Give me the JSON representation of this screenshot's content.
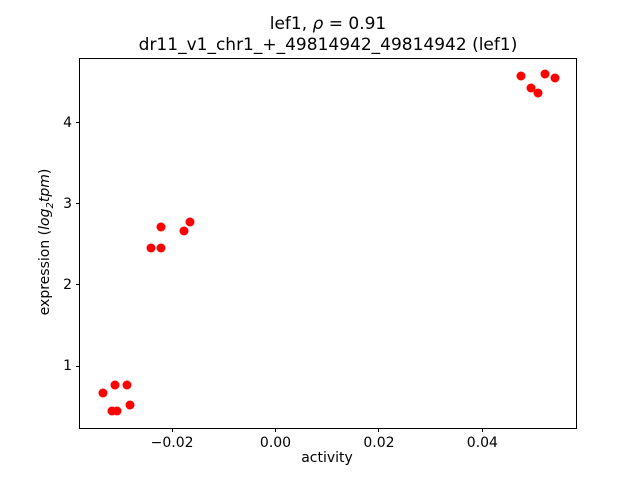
{
  "figure": {
    "title_line1": {
      "prefix": "lef1, ",
      "rho": "ρ",
      "suffix": " = 0.91"
    },
    "title_line2": "dr11_v1_chr1_+_49814942_49814942 (lef1)",
    "xlabel": "activity",
    "ylabel": {
      "prefix": "expression (",
      "log": "log",
      "sub": "2",
      "tpm": "tpm",
      "suffix": ")"
    }
  },
  "chart_data": {
    "type": "scatter",
    "title": "lef1, ρ = 0.91",
    "subtitle": "dr11_v1_chr1_+_49814942_49814942 (lef1)",
    "xlabel": "activity",
    "ylabel": "expression (log2tpm)",
    "marker_color": "#ff0000",
    "marker_diameter_px": 9,
    "axis_color": "#000000",
    "grid": false,
    "legend": false,
    "xlim": [
      -0.0378,
      0.0581
    ],
    "ylim": [
      0.236,
      4.785
    ],
    "x_ticks": {
      "values": [
        -0.02,
        0.0,
        0.02,
        0.04
      ],
      "labels": [
        "−0.02",
        "0.00",
        "0.02",
        "0.04"
      ]
    },
    "y_ticks": {
      "values": [
        1,
        2,
        3,
        4
      ],
      "labels": [
        "1",
        "2",
        "3",
        "4"
      ]
    },
    "points": [
      [
        -0.0334,
        0.67
      ],
      [
        -0.0317,
        0.45
      ],
      [
        -0.0311,
        0.76
      ],
      [
        -0.0306,
        0.45
      ],
      [
        -0.0287,
        0.77
      ],
      [
        -0.0281,
        0.52
      ],
      [
        -0.024,
        2.45
      ],
      [
        -0.0221,
        2.45
      ],
      [
        -0.0221,
        2.71
      ],
      [
        -0.0176,
        2.67
      ],
      [
        -0.0165,
        2.78
      ],
      [
        0.0474,
        4.57
      ],
      [
        0.0494,
        4.43
      ],
      [
        0.0507,
        4.37
      ],
      [
        0.0521,
        4.6
      ],
      [
        0.0541,
        4.55
      ]
    ]
  }
}
